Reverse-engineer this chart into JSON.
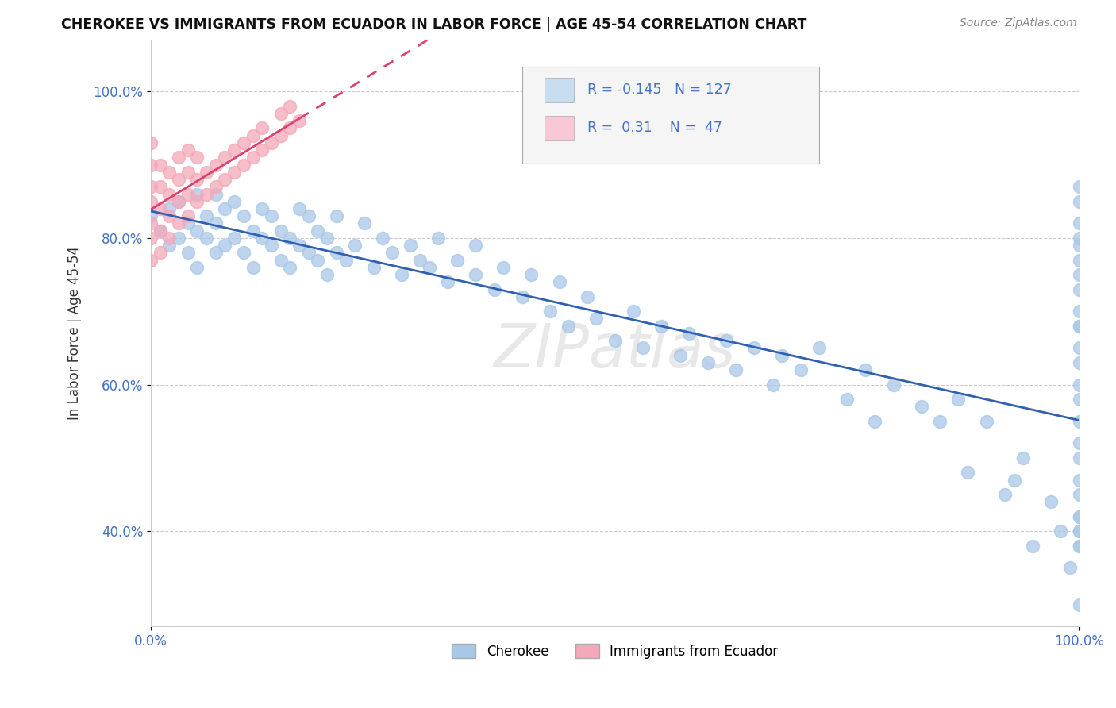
{
  "title": "CHEROKEE VS IMMIGRANTS FROM ECUADOR IN LABOR FORCE | AGE 45-54 CORRELATION CHART",
  "source": "Source: ZipAtlas.com",
  "ylabel": "In Labor Force | Age 45-54",
  "r_cherokee": -0.145,
  "n_cherokee": 127,
  "r_ecuador": 0.31,
  "n_ecuador": 47,
  "cherokee_color": "#a8c8e8",
  "ecuador_color": "#f4a8b8",
  "cherokee_line_color": "#3060b0",
  "ecuador_line_color": "#e04070",
  "legend_box_color_cherokee": "#c8ddf0",
  "legend_box_color_ecuador": "#f8c8d4",
  "background_color": "#ffffff",
  "watermark": "ZIPatlas",
  "ylim_low": 0.27,
  "ylim_high": 1.07,
  "cherokee_x": [
    0.0,
    0.01,
    0.02,
    0.02,
    0.03,
    0.03,
    0.04,
    0.04,
    0.05,
    0.05,
    0.05,
    0.06,
    0.06,
    0.07,
    0.07,
    0.07,
    0.08,
    0.08,
    0.09,
    0.09,
    0.1,
    0.1,
    0.11,
    0.11,
    0.12,
    0.12,
    0.13,
    0.13,
    0.14,
    0.14,
    0.15,
    0.15,
    0.16,
    0.16,
    0.17,
    0.17,
    0.18,
    0.18,
    0.19,
    0.19,
    0.2,
    0.2,
    0.21,
    0.22,
    0.23,
    0.24,
    0.25,
    0.26,
    0.27,
    0.28,
    0.29,
    0.3,
    0.31,
    0.32,
    0.33,
    0.35,
    0.35,
    0.37,
    0.38,
    0.4,
    0.41,
    0.43,
    0.44,
    0.45,
    0.47,
    0.48,
    0.5,
    0.52,
    0.53,
    0.55,
    0.57,
    0.58,
    0.6,
    0.62,
    0.63,
    0.65,
    0.67,
    0.68,
    0.7,
    0.72,
    0.75,
    0.77,
    0.78,
    0.8,
    0.83,
    0.85,
    0.87,
    0.88,
    0.9,
    0.92,
    0.93,
    0.94,
    0.95,
    0.97,
    0.98,
    0.99,
    1.0,
    1.0,
    1.0,
    1.0,
    1.0,
    1.0,
    1.0,
    1.0,
    1.0,
    1.0,
    1.0,
    1.0,
    1.0,
    1.0,
    1.0,
    1.0,
    1.0,
    1.0,
    1.0,
    1.0,
    1.0,
    1.0,
    1.0,
    1.0,
    1.0,
    1.0,
    1.0
  ],
  "cherokee_y": [
    0.83,
    0.81,
    0.79,
    0.84,
    0.8,
    0.85,
    0.78,
    0.82,
    0.76,
    0.81,
    0.86,
    0.8,
    0.83,
    0.78,
    0.82,
    0.86,
    0.79,
    0.84,
    0.8,
    0.85,
    0.78,
    0.83,
    0.81,
    0.76,
    0.8,
    0.84,
    0.79,
    0.83,
    0.77,
    0.81,
    0.76,
    0.8,
    0.79,
    0.84,
    0.78,
    0.83,
    0.77,
    0.81,
    0.8,
    0.75,
    0.78,
    0.83,
    0.77,
    0.79,
    0.82,
    0.76,
    0.8,
    0.78,
    0.75,
    0.79,
    0.77,
    0.76,
    0.8,
    0.74,
    0.77,
    0.75,
    0.79,
    0.73,
    0.76,
    0.72,
    0.75,
    0.7,
    0.74,
    0.68,
    0.72,
    0.69,
    0.66,
    0.7,
    0.65,
    0.68,
    0.64,
    0.67,
    0.63,
    0.66,
    0.62,
    0.65,
    0.6,
    0.64,
    0.62,
    0.65,
    0.58,
    0.62,
    0.55,
    0.6,
    0.57,
    0.55,
    0.58,
    0.48,
    0.55,
    0.45,
    0.47,
    0.5,
    0.38,
    0.44,
    0.4,
    0.35,
    0.3,
    0.38,
    0.4,
    0.42,
    0.65,
    0.7,
    0.75,
    0.8,
    0.82,
    0.85,
    0.87,
    0.79,
    0.77,
    0.73,
    0.68,
    0.6,
    0.55,
    0.5,
    0.45,
    0.4,
    0.38,
    0.42,
    0.47,
    0.52,
    0.58,
    0.63,
    0.68
  ],
  "ecuador_x": [
    0.0,
    0.0,
    0.0,
    0.0,
    0.0,
    0.0,
    0.0,
    0.01,
    0.01,
    0.01,
    0.01,
    0.01,
    0.02,
    0.02,
    0.02,
    0.02,
    0.03,
    0.03,
    0.03,
    0.03,
    0.04,
    0.04,
    0.04,
    0.04,
    0.05,
    0.05,
    0.05,
    0.06,
    0.06,
    0.07,
    0.07,
    0.08,
    0.08,
    0.09,
    0.09,
    0.1,
    0.1,
    0.11,
    0.11,
    0.12,
    0.12,
    0.13,
    0.14,
    0.14,
    0.15,
    0.15,
    0.16
  ],
  "ecuador_y": [
    0.77,
    0.8,
    0.82,
    0.85,
    0.87,
    0.9,
    0.93,
    0.78,
    0.81,
    0.84,
    0.87,
    0.9,
    0.8,
    0.83,
    0.86,
    0.89,
    0.82,
    0.85,
    0.88,
    0.91,
    0.83,
    0.86,
    0.89,
    0.92,
    0.85,
    0.88,
    0.91,
    0.86,
    0.89,
    0.87,
    0.9,
    0.88,
    0.91,
    0.89,
    0.92,
    0.9,
    0.93,
    0.91,
    0.94,
    0.92,
    0.95,
    0.93,
    0.94,
    0.97,
    0.95,
    0.98,
    0.96
  ]
}
